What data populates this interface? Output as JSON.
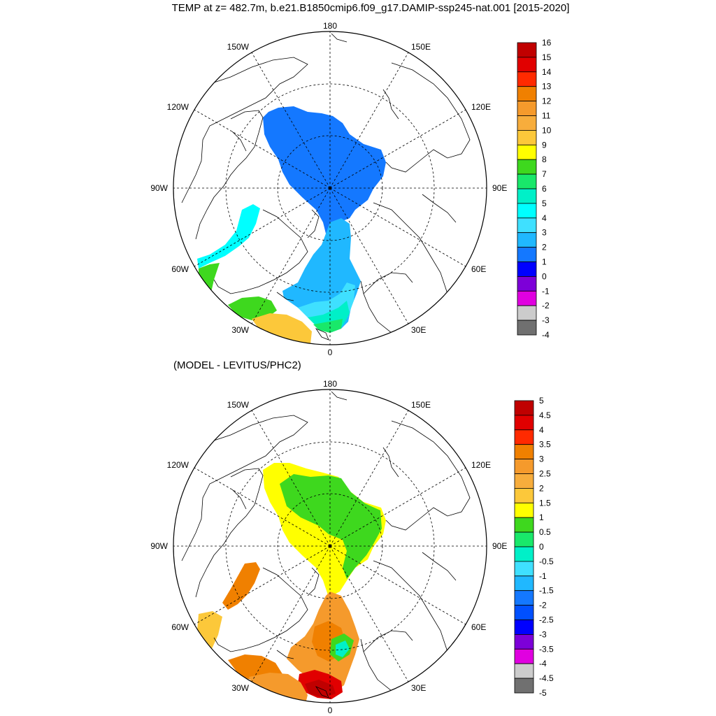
{
  "title": "TEMP at z= 482.7m, b.e21.B1850cmip6.f09_g17.DAMIP-ssp245-nat.001 [2015-2020]",
  "subtitle": "(MODEL - LEVITUS/PHC2)",
  "longitude_labels": {
    "top": "180",
    "bottom": "0",
    "left": "90W",
    "right": "90E",
    "upper_left": "150W",
    "upper_right": "150E",
    "mid_upper_left": "120W",
    "mid_upper_right": "120E",
    "mid_lower_left": "60W",
    "mid_lower_right": "60E",
    "lower_left": "30W",
    "lower_right": "30E"
  },
  "colorbar_top": {
    "labels": [
      "16",
      "15",
      "14",
      "13",
      "12",
      "11",
      "10",
      "9",
      "8",
      "7",
      "6",
      "5",
      "4",
      "3",
      "2",
      "1",
      "0",
      "-1",
      "-2",
      "-3",
      "-4"
    ],
    "colors": [
      "#c00000",
      "#e10000",
      "#ff2a00",
      "#f08000",
      "#f59a2c",
      "#f7ad3c",
      "#fcc83a",
      "#ffff00",
      "#3ed81e",
      "#19e86a",
      "#00f0c8",
      "#00ffff",
      "#3fe0ff",
      "#20b8ff",
      "#1478ff",
      "#0000ff",
      "#7d00d8",
      "#e000e0",
      "#cccccc",
      "#707070"
    ]
  },
  "colorbar_bottom": {
    "labels": [
      "5",
      "4.5",
      "4",
      "3.5",
      "3",
      "2.5",
      "2",
      "1.5",
      "1",
      "0.5",
      "0",
      "-0.5",
      "-1",
      "-1.5",
      "-2",
      "-2.5",
      "-3",
      "-3.5",
      "-4",
      "-4.5",
      "-5"
    ],
    "colors": [
      "#c00000",
      "#e10000",
      "#ff2a00",
      "#f08000",
      "#f59a2c",
      "#f7ad3c",
      "#fcc83a",
      "#ffff00",
      "#3ed81e",
      "#19e86a",
      "#00f0c8",
      "#3fe0ff",
      "#20b8ff",
      "#1478ff",
      "#0050ff",
      "#0000ff",
      "#7d00d8",
      "#e000e0",
      "#cccccc",
      "#707070"
    ]
  }
}
